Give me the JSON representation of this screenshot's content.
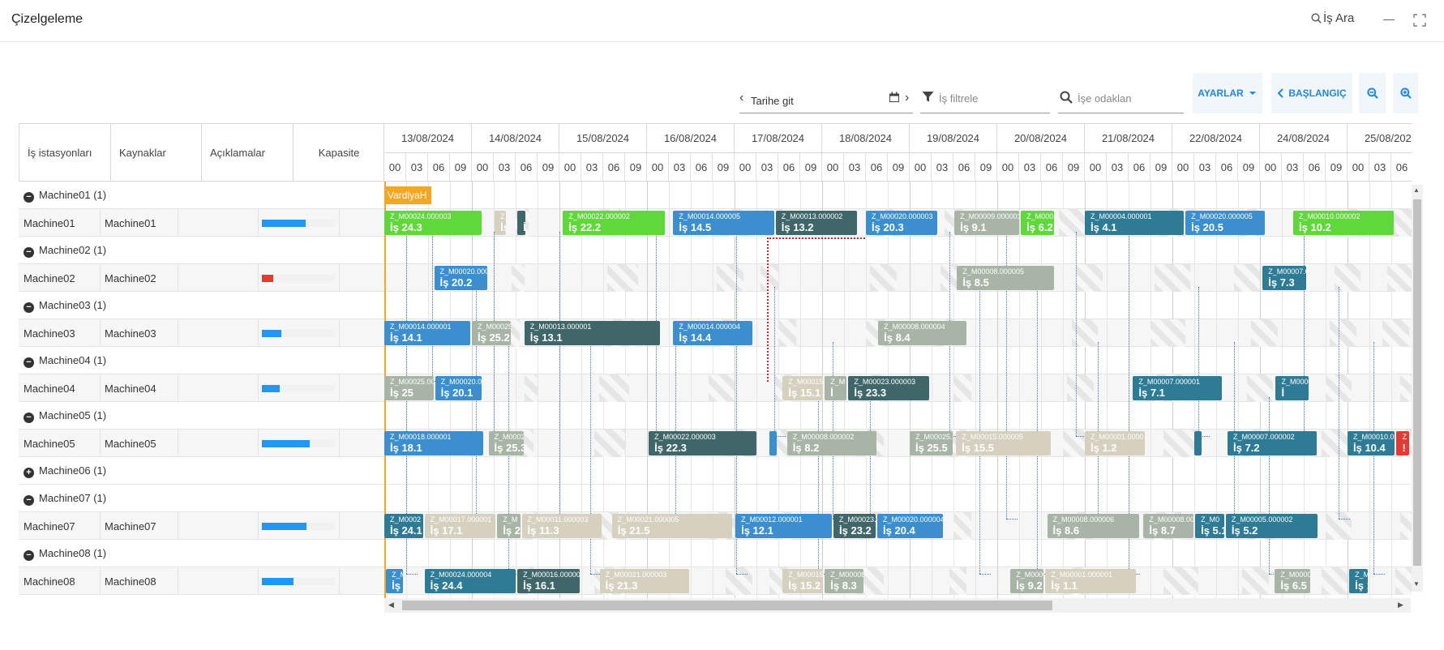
{
  "header": {
    "title": "Çizelgeleme",
    "search_label": "İş Ara"
  },
  "toolbar": {
    "date_go_label": "Tarihe git",
    "filter_placeholder": "İş filtrele",
    "focus_placeholder": "İşe odaklan",
    "settings_label": "AYARLAR",
    "start_label": "BAŞLANGIÇ"
  },
  "columns": [
    "İş istasyonları",
    "Kaynaklar",
    "Açıklamalar",
    "Kapasite"
  ],
  "dates": [
    "13/08/2024",
    "14/08/2024",
    "15/08/2024",
    "16/08/2024",
    "17/08/2024",
    "18/08/2024",
    "19/08/2024",
    "20/08/2024",
    "21/08/2024",
    "22/08/2024",
    "24/08/2024",
    "25/08/2024"
  ],
  "hours": [
    "00",
    "03",
    "06",
    "09"
  ],
  "shift_label": "VardiyaH",
  "colors": {
    "accent": "#1e88e5",
    "shift": "#f5a623",
    "capacity_ok": "#2196f3",
    "capacity_low": "#e53935"
  },
  "rows": [
    {
      "type": "group",
      "label": "Machine01 (1)",
      "toggle": "−"
    },
    {
      "type": "machine",
      "station": "Machine01",
      "resource": "Machine01",
      "capacity": 0.6,
      "cap_color": "#2196f3"
    },
    {
      "type": "group",
      "label": "Machine02 (1)",
      "toggle": "−"
    },
    {
      "type": "machine",
      "station": "Machine02",
      "resource": "Machine02",
      "capacity": 0.15,
      "cap_color": "#e53935"
    },
    {
      "type": "group",
      "label": "Machine03 (1)",
      "toggle": "−"
    },
    {
      "type": "machine",
      "station": "Machine03",
      "resource": "Machine03",
      "capacity": 0.27,
      "cap_color": "#2196f3"
    },
    {
      "type": "group",
      "label": "Machine04 (1)",
      "toggle": "−"
    },
    {
      "type": "machine",
      "station": "Machine04",
      "resource": "Machine04",
      "capacity": 0.24,
      "cap_color": "#2196f3"
    },
    {
      "type": "group",
      "label": "Machine05 (1)",
      "toggle": "−"
    },
    {
      "type": "machine",
      "station": "Machine05",
      "resource": "Machine05",
      "capacity": 0.65,
      "cap_color": "#2196f3"
    },
    {
      "type": "group",
      "label": "Machine06 (1)",
      "toggle": "+"
    },
    {
      "type": "group",
      "label": "Machine07 (1)",
      "toggle": "−"
    },
    {
      "type": "machine",
      "station": "Machine07",
      "resource": "Machine07",
      "capacity": 0.61,
      "cap_color": "#2196f3"
    },
    {
      "type": "group",
      "label": "Machine08 (1)",
      "toggle": "−"
    },
    {
      "type": "machine",
      "station": "Machine08",
      "resource": "Machine08",
      "capacity": 0.43,
      "cap_color": "#2196f3"
    }
  ],
  "tasks": [
    {
      "row": 1,
      "start": 0.0,
      "end": 1.13,
      "code": "Z_M00024.000003",
      "name": "İş 24.3",
      "color": "#5fd83a"
    },
    {
      "row": 1,
      "start": 1.26,
      "end": 1.41,
      "code": "Z_M",
      "name": "İş",
      "color": "#d6d0bf"
    },
    {
      "row": 1,
      "start": 1.52,
      "end": 1.63,
      "code": "",
      "name": "İ",
      "color": "#3f6668"
    },
    {
      "row": 1,
      "start": 2.04,
      "end": 3.22,
      "code": "Z_M00022.000002",
      "name": "İş 22.2",
      "color": "#5fd83a"
    },
    {
      "row": 1,
      "start": 3.3,
      "end": 4.47,
      "code": "Z_M00014.000005",
      "name": "İş 14.5",
      "color": "#3b8fcf"
    },
    {
      "row": 1,
      "start": 4.47,
      "end": 5.42,
      "code": "Z_M00013.000002",
      "name": "İş 13.2",
      "color": "#3f6668"
    },
    {
      "row": 1,
      "start": 5.5,
      "end": 6.33,
      "code": "Z_M00020.000003",
      "name": "İş 20.3",
      "color": "#3b8fcf"
    },
    {
      "row": 1,
      "start": 6.51,
      "end": 7.27,
      "code": "Z_M00009.000001",
      "name": "İş 9.1",
      "color": "#a8b5a6"
    },
    {
      "row": 1,
      "start": 7.27,
      "end": 7.67,
      "code": "Z_M000",
      "name": "İş 6.2",
      "color": "#5fd83a"
    },
    {
      "row": 1,
      "start": 8.0,
      "end": 9.15,
      "code": "Z_M00004.000001",
      "name": "İş 4.1",
      "color": "#2e7b96"
    },
    {
      "row": 1,
      "start": 9.15,
      "end": 10.07,
      "code": "Z_M00020.000005",
      "name": "İş 20.5",
      "color": "#3b8fcf"
    },
    {
      "row": 1,
      "start": 10.38,
      "end": 11.55,
      "code": "Z_M00010.000002",
      "name": "İş 10.2",
      "color": "#5fd83a"
    },
    {
      "row": 3,
      "start": 0.57,
      "end": 1.19,
      "code": "Z_M00020.000002",
      "name": "İş 20.2",
      "color": "#3b8fcf"
    },
    {
      "row": 3,
      "start": 6.54,
      "end": 7.67,
      "code": "Z_M00008.000005",
      "name": "İş 8.5",
      "color": "#a8b5a6"
    },
    {
      "row": 3,
      "start": 10.03,
      "end": 10.55,
      "code": "Z_M00007.0",
      "name": "İş 7.3",
      "color": "#2e7b96"
    },
    {
      "row": 5,
      "start": 0.0,
      "end": 1.0,
      "code": "Z_M00014.000001",
      "name": "İş 14.1",
      "color": "#3b8fcf"
    },
    {
      "row": 5,
      "start": 1.0,
      "end": 1.46,
      "code": "Z_M00025.0",
      "name": "İş 25.2",
      "color": "#a8b5a6"
    },
    {
      "row": 5,
      "start": 1.6,
      "end": 3.17,
      "code": "Z_M00013.000001",
      "name": "İş 13.1",
      "color": "#3f6668"
    },
    {
      "row": 5,
      "start": 3.3,
      "end": 4.22,
      "code": "Z_M00014.000004",
      "name": "İş 14.4",
      "color": "#3b8fcf"
    },
    {
      "row": 5,
      "start": 5.64,
      "end": 6.67,
      "code": "Z_M00008.000004",
      "name": "İş 8.4",
      "color": "#a8b5a6"
    },
    {
      "row": 7,
      "start": 0.0,
      "end": 0.58,
      "code": "Z_M00025.00",
      "name": "İş 25",
      "color": "#a8b5a6"
    },
    {
      "row": 7,
      "start": 0.58,
      "end": 1.13,
      "code": "Z_M00020.00",
      "name": "İş 20.1",
      "color": "#3b8fcf"
    },
    {
      "row": 7,
      "start": 4.55,
      "end": 5.03,
      "code": "Z_M00015.0",
      "name": "İş 15.1",
      "color": "#d6d0bf"
    },
    {
      "row": 7,
      "start": 5.03,
      "end": 5.3,
      "code": "Z_M",
      "name": "İ",
      "color": "#a8b5a6"
    },
    {
      "row": 7,
      "start": 5.3,
      "end": 6.24,
      "code": "Z_M00023.000003",
      "name": "İş 23.3",
      "color": "#3f6668"
    },
    {
      "row": 7,
      "start": 8.55,
      "end": 9.58,
      "code": "Z_M00007.000001",
      "name": "İş 7.1",
      "color": "#2e7b96"
    },
    {
      "row": 7,
      "start": 10.18,
      "end": 10.57,
      "code": "Z_M0000",
      "name": "İ",
      "color": "#2e7b96"
    },
    {
      "row": 9,
      "start": 0.0,
      "end": 1.15,
      "code": "Z_M00018.000001",
      "name": "İş 18.1",
      "color": "#3b8fcf"
    },
    {
      "row": 9,
      "start": 1.19,
      "end": 1.61,
      "code": "Z_M0002",
      "name": "İş 25.3",
      "color": "#a8b5a6"
    },
    {
      "row": 9,
      "start": 3.02,
      "end": 4.27,
      "code": "Z_M00022.000003",
      "name": "İş 22.3",
      "color": "#3f6668"
    },
    {
      "row": 9,
      "start": 4.4,
      "end": 4.5,
      "code": "",
      "name": "",
      "color": "#3b8fcf"
    },
    {
      "row": 9,
      "start": 4.6,
      "end": 5.64,
      "code": "Z_M00008.000002",
      "name": "İş 8.2",
      "color": "#a8b5a6"
    },
    {
      "row": 9,
      "start": 6.0,
      "end": 6.51,
      "code": "Z_M00025.0",
      "name": "İş 25.5",
      "color": "#a8b5a6"
    },
    {
      "row": 9,
      "start": 6.53,
      "end": 7.63,
      "code": "Z_M00015.000005",
      "name": "İş 15.5",
      "color": "#d6d0bf"
    },
    {
      "row": 9,
      "start": 8.0,
      "end": 8.7,
      "code": "Z_M00001.0000",
      "name": "İş 1.2",
      "color": "#d6d0bf"
    },
    {
      "row": 9,
      "start": 9.25,
      "end": 9.35,
      "code": "",
      "name": "",
      "color": "#2e7b96"
    },
    {
      "row": 9,
      "start": 9.63,
      "end": 10.67,
      "code": "Z_M00007.000002",
      "name": "İş 7.2",
      "color": "#2e7b96"
    },
    {
      "row": 9,
      "start": 11.0,
      "end": 11.56,
      "code": "Z_M00010.0",
      "name": "İş 10.4",
      "color": "#2e7b96"
    },
    {
      "row": 9,
      "start": 11.56,
      "end": 11.72,
      "code": "Z",
      "name": "!",
      "color": "#e53935"
    },
    {
      "row": 12,
      "start": 0.0,
      "end": 0.46,
      "code": "Z_M0002",
      "name": "İş 24.1",
      "color": "#2e7b96"
    },
    {
      "row": 12,
      "start": 0.46,
      "end": 1.29,
      "code": "Z_M00017.000001",
      "name": "İş 17.1",
      "color": "#d6d0bf"
    },
    {
      "row": 12,
      "start": 1.29,
      "end": 1.57,
      "code": "Z_M",
      "name": "İş 2",
      "color": "#a8b5a6"
    },
    {
      "row": 12,
      "start": 1.57,
      "end": 2.5,
      "code": "Z_M00011.000003",
      "name": "İş 11.3",
      "color": "#d6d0bf"
    },
    {
      "row": 12,
      "start": 2.6,
      "end": 3.99,
      "code": "Z_M00021.000005",
      "name": "İş 21.5",
      "color": "#d6d0bf"
    },
    {
      "row": 12,
      "start": 4.01,
      "end": 5.13,
      "code": "Z_M00012.000001",
      "name": "İş 12.1",
      "color": "#3b8fcf"
    },
    {
      "row": 12,
      "start": 5.13,
      "end": 5.63,
      "code": "Z_M00023.0",
      "name": "İş 23.2",
      "color": "#3f6668"
    },
    {
      "row": 12,
      "start": 5.63,
      "end": 6.4,
      "code": "Z_M00020.000004",
      "name": "İş 20.4",
      "color": "#3b8fcf"
    },
    {
      "row": 12,
      "start": 7.57,
      "end": 8.64,
      "code": "Z_M00008.000006",
      "name": "İş 8.6",
      "color": "#a8b5a6"
    },
    {
      "row": 12,
      "start": 8.67,
      "end": 9.26,
      "code": "Z_M00008.00",
      "name": "İş 8.7",
      "color": "#a8b5a6"
    },
    {
      "row": 12,
      "start": 9.26,
      "end": 9.61,
      "code": "Z_M0",
      "name": "İş 5.1",
      "color": "#2e7b96"
    },
    {
      "row": 12,
      "start": 9.61,
      "end": 10.68,
      "code": "Z_M00005.000002",
      "name": "İş 5.2",
      "color": "#2e7b96"
    },
    {
      "row": 14,
      "start": 0.02,
      "end": 0.23,
      "code": "Z_M",
      "name": "İş 1",
      "color": "#3b8fcf"
    },
    {
      "row": 14,
      "start": 0.46,
      "end": 1.52,
      "code": "Z_M00024.000004",
      "name": "İş 24.4",
      "color": "#2e7b96"
    },
    {
      "row": 14,
      "start": 1.52,
      "end": 2.25,
      "code": "Z_M00016.000001",
      "name": "İş 16.1",
      "color": "#3f6668"
    },
    {
      "row": 14,
      "start": 2.46,
      "end": 3.5,
      "code": "Z_M00021.000003",
      "name": "İş 21.3",
      "color": "#d6d0bf"
    },
    {
      "row": 14,
      "start": 4.55,
      "end": 5.03,
      "code": "Z_M00015.0",
      "name": "İş 15.2",
      "color": "#d6d0bf"
    },
    {
      "row": 14,
      "start": 5.03,
      "end": 5.49,
      "code": "Z_M00008.0",
      "name": "İş 8.3",
      "color": "#a8b5a6"
    },
    {
      "row": 14,
      "start": 7.15,
      "end": 7.55,
      "code": "Z_M0000",
      "name": "İş 9.2",
      "color": "#a8b5a6"
    },
    {
      "row": 14,
      "start": 7.55,
      "end": 8.6,
      "code": "Z_M00001.000001",
      "name": "İş 1.1",
      "color": "#d6d0bf"
    },
    {
      "row": 14,
      "start": 10.17,
      "end": 10.59,
      "code": "Z_M0000",
      "name": "İş 6.5",
      "color": "#a8b5a6"
    },
    {
      "row": 14,
      "start": 11.02,
      "end": 11.25,
      "code": "Z_M",
      "name": "İş 1",
      "color": "#2e7b96"
    }
  ]
}
